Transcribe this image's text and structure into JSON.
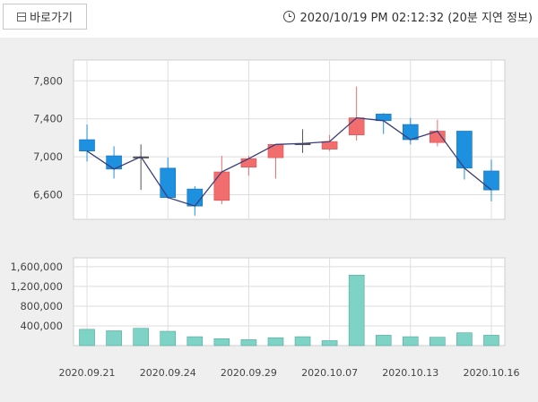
{
  "header": {
    "shortcut_label": "바로가기",
    "timestamp": "2020/10/19 PM 02:12:32 (20분 지연 정보)"
  },
  "chart_data": {
    "type": "candlestick",
    "title": "",
    "colors": {
      "up": "#f26d6d",
      "down": "#1e90e0",
      "neutral": "#555555",
      "line": "#3a3f7a",
      "volume": "#7fd3c6"
    },
    "price_axis": {
      "ticks": [
        6600,
        7000,
        7400,
        7800
      ],
      "tick_labels": [
        "6,600",
        "7,000",
        "7,400",
        "7,800"
      ],
      "ylim": [
        6340,
        8020
      ]
    },
    "volume_axis": {
      "ticks": [
        400000,
        800000,
        1200000,
        1600000
      ],
      "tick_labels": [
        "400,000",
        "800,000",
        "1,200,000",
        "1,600,000"
      ],
      "ylim": [
        0,
        1780000
      ]
    },
    "x_tick_labels": [
      {
        "index": 0,
        "label": "2020.09.21"
      },
      {
        "index": 3,
        "label": "2020.09.24"
      },
      {
        "index": 6,
        "label": "2020.09.29"
      },
      {
        "index": 9,
        "label": "2020.10.07"
      },
      {
        "index": 12,
        "label": "2020.10.13"
      },
      {
        "index": 15,
        "label": "2020.10.16"
      }
    ],
    "candles": [
      {
        "open": 7180,
        "high": 7340,
        "low": 6950,
        "close": 7060,
        "volume": 330000
      },
      {
        "open": 7010,
        "high": 7110,
        "low": 6770,
        "close": 6870,
        "volume": 300000
      },
      {
        "open": 7000,
        "high": 7130,
        "low": 6650,
        "close": 7000,
        "volume": 350000
      },
      {
        "open": 6880,
        "high": 6990,
        "low": 6560,
        "close": 6570,
        "volume": 290000
      },
      {
        "open": 6660,
        "high": 6690,
        "low": 6380,
        "close": 6480,
        "volume": 180000
      },
      {
        "open": 6540,
        "high": 7010,
        "low": 6500,
        "close": 6840,
        "volume": 140000
      },
      {
        "open": 6890,
        "high": 7010,
        "low": 6800,
        "close": 6980,
        "volume": 120000
      },
      {
        "open": 6990,
        "high": 7130,
        "low": 6770,
        "close": 7130,
        "volume": 160000
      },
      {
        "open": 7140,
        "high": 7290,
        "low": 7040,
        "close": 7140,
        "volume": 180000
      },
      {
        "open": 7080,
        "high": 7230,
        "low": 7060,
        "close": 7160,
        "volume": 100000
      },
      {
        "open": 7230,
        "high": 7740,
        "low": 7170,
        "close": 7410,
        "volume": 1430000
      },
      {
        "open": 7450,
        "high": 7460,
        "low": 7240,
        "close": 7380,
        "volume": 210000
      },
      {
        "open": 7340,
        "high": 7410,
        "low": 7130,
        "close": 7180,
        "volume": 180000
      },
      {
        "open": 7150,
        "high": 7390,
        "low": 7110,
        "close": 7270,
        "volume": 170000
      },
      {
        "open": 7270,
        "high": 7270,
        "low": 6760,
        "close": 6880,
        "volume": 260000
      },
      {
        "open": 6850,
        "high": 6970,
        "low": 6530,
        "close": 6650,
        "volume": 210000
      }
    ],
    "close_line": [
      7060,
      6870,
      7000,
      6570,
      6480,
      6840,
      6980,
      7130,
      7140,
      7160,
      7410,
      7380,
      7180,
      7270,
      6880,
      6650
    ]
  }
}
